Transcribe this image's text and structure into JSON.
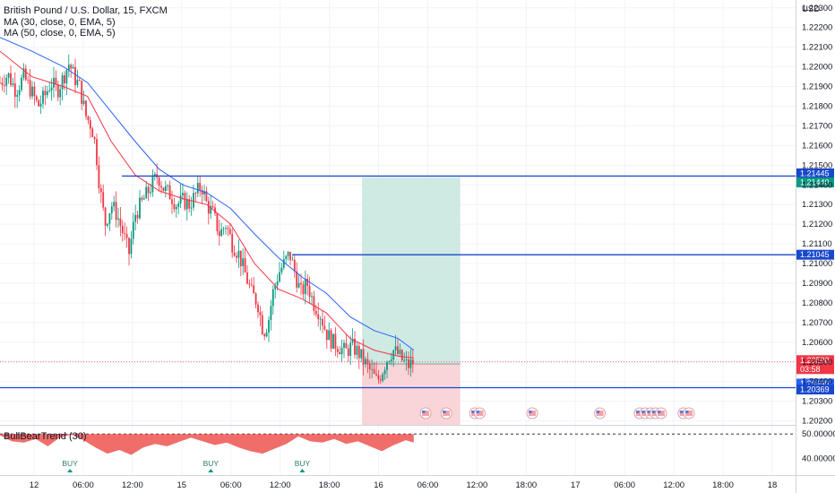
{
  "header": {
    "title": "British Pound / U.S. Dollar, 15, FXCM",
    "ma30": "MA (30, close, 0, EMA, 5)",
    "ma50": "MA (50, close, 0, EMA, 5)",
    "currency": "USD"
  },
  "chart_data": {
    "type": "candlestick",
    "title": "British Pound / U.S. Dollar, 15, FXCM",
    "ylim": [
      1.2018,
      1.2234
    ],
    "y_ticks": [
      "1.22300",
      "1.22200",
      "1.22100",
      "1.22000",
      "1.21900",
      "1.21800",
      "1.21700",
      "1.21600",
      "1.21500",
      "1.21400",
      "1.21300",
      "1.21200",
      "1.21100",
      "1.21000",
      "1.20900",
      "1.20800",
      "1.20700",
      "1.20600",
      "1.20500",
      "1.20400",
      "1.20300",
      "1.20200"
    ],
    "x_ticks": [
      "12",
      "06:00",
      "12:00",
      "15",
      "06:00",
      "12:00",
      "18:00",
      "16",
      "06:00",
      "12:00",
      "18:00",
      "17",
      "06:00",
      "12:00",
      "18:00",
      "18"
    ],
    "levels": [
      {
        "name": "upper-level",
        "value": 1.21445,
        "label": "1.21445"
      },
      {
        "name": "middle-level",
        "value": 1.21045,
        "label": "1.21045"
      },
      {
        "name": "lower-level",
        "value": 1.20369,
        "label": "1.20369"
      }
    ],
    "price_labels": [
      {
        "name": "take-profit-label",
        "value": 1.2144,
        "label": "1.21440",
        "color": "#089981"
      },
      {
        "name": "last-price-label",
        "value": 1.205,
        "label": "1.20500",
        "countdown": "03:58",
        "color": "#f23645"
      },
      {
        "name": "entry-price-label",
        "value": 1.2049,
        "label": "1.20490",
        "color": "#2962ff"
      }
    ],
    "position": {
      "entry": 1.2049,
      "take_profit": 1.2144,
      "stop_loss": 1.2018,
      "from": 0.455,
      "to": 0.5785
    },
    "price_path": [
      [
        0.0,
        1.2192
      ],
      [
        0.01,
        1.2196
      ],
      [
        0.02,
        1.2188
      ],
      [
        0.03,
        1.2195
      ],
      [
        0.04,
        1.2187
      ],
      [
        0.048,
        1.218
      ],
      [
        0.056,
        1.2185
      ],
      [
        0.064,
        1.2192
      ],
      [
        0.072,
        1.2188
      ],
      [
        0.08,
        1.2195
      ],
      [
        0.087,
        1.2202
      ],
      [
        0.093,
        1.2195
      ],
      [
        0.1,
        1.219
      ],
      [
        0.108,
        1.2175
      ],
      [
        0.115,
        1.217
      ],
      [
        0.12,
        1.216
      ],
      [
        0.125,
        1.214
      ],
      [
        0.132,
        1.212
      ],
      [
        0.14,
        1.213
      ],
      [
        0.147,
        1.2125
      ],
      [
        0.155,
        1.2115
      ],
      [
        0.162,
        1.2105
      ],
      [
        0.17,
        1.2125
      ],
      [
        0.177,
        1.213
      ],
      [
        0.184,
        1.2135
      ],
      [
        0.191,
        1.214
      ],
      [
        0.198,
        1.2145
      ],
      [
        0.206,
        1.2138
      ],
      [
        0.214,
        1.2135
      ],
      [
        0.222,
        1.213
      ],
      [
        0.23,
        1.2132
      ],
      [
        0.238,
        1.213
      ],
      [
        0.246,
        1.2135
      ],
      [
        0.253,
        1.214
      ],
      [
        0.26,
        1.213
      ],
      [
        0.268,
        1.2125
      ],
      [
        0.276,
        1.2115
      ],
      [
        0.284,
        1.212
      ],
      [
        0.292,
        1.211
      ],
      [
        0.3,
        1.2105
      ],
      [
        0.308,
        1.2095
      ],
      [
        0.316,
        1.2085
      ],
      [
        0.324,
        1.208
      ],
      [
        0.331,
        1.2065
      ],
      [
        0.337,
        1.207
      ],
      [
        0.343,
        1.2085
      ],
      [
        0.35,
        1.2095
      ],
      [
        0.357,
        1.21
      ],
      [
        0.364,
        1.2105
      ],
      [
        0.371,
        1.2095
      ],
      [
        0.378,
        1.2085
      ],
      [
        0.386,
        1.209
      ],
      [
        0.394,
        1.208
      ],
      [
        0.402,
        1.2075
      ],
      [
        0.41,
        1.2065
      ],
      [
        0.418,
        1.206
      ],
      [
        0.426,
        1.2058
      ],
      [
        0.434,
        1.2055
      ],
      [
        0.442,
        1.2058
      ],
      [
        0.45,
        1.2055
      ],
      [
        0.458,
        1.205
      ],
      [
        0.466,
        1.2045
      ],
      [
        0.474,
        1.204
      ],
      [
        0.48,
        1.2045
      ],
      [
        0.487,
        1.2052
      ],
      [
        0.494,
        1.2056
      ],
      [
        0.5,
        1.2054
      ],
      [
        0.507,
        1.205
      ],
      [
        0.513,
        1.2048
      ],
      [
        0.52,
        1.205
      ]
    ],
    "ma30_path": [
      [
        0.0,
        1.2208
      ],
      [
        0.04,
        1.2195
      ],
      [
        0.08,
        1.219
      ],
      [
        0.11,
        1.2185
      ],
      [
        0.14,
        1.2162
      ],
      [
        0.17,
        1.2145
      ],
      [
        0.2,
        1.2137
      ],
      [
        0.23,
        1.2133
      ],
      [
        0.26,
        1.213
      ],
      [
        0.29,
        1.212
      ],
      [
        0.32,
        1.21
      ],
      [
        0.35,
        1.2087
      ],
      [
        0.38,
        1.2082
      ],
      [
        0.41,
        1.2075
      ],
      [
        0.44,
        1.2062
      ],
      [
        0.47,
        1.2056
      ],
      [
        0.5,
        1.2053
      ],
      [
        0.52,
        1.2052
      ]
    ],
    "ma50_path": [
      [
        0.0,
        1.2215
      ],
      [
        0.04,
        1.2208
      ],
      [
        0.08,
        1.22
      ],
      [
        0.11,
        1.2192
      ],
      [
        0.14,
        1.2177
      ],
      [
        0.17,
        1.2162
      ],
      [
        0.2,
        1.2148
      ],
      [
        0.23,
        1.214
      ],
      [
        0.26,
        1.2136
      ],
      [
        0.29,
        1.2128
      ],
      [
        0.32,
        1.2115
      ],
      [
        0.35,
        1.2103
      ],
      [
        0.38,
        1.2093
      ],
      [
        0.41,
        1.2085
      ],
      [
        0.44,
        1.2073
      ],
      [
        0.47,
        1.2066
      ],
      [
        0.5,
        1.2062
      ],
      [
        0.52,
        1.2056
      ]
    ],
    "indicator": {
      "name": "BullBearTrend (30)",
      "ylim": [
        34.0,
        53.0
      ],
      "y_ticks": [
        "50.00000",
        "40.00000"
      ],
      "baseline": 50.0,
      "baseline_label": "50.00000",
      "values": [
        [
          0.0,
          49.5
        ],
        [
          0.015,
          47.0
        ],
        [
          0.03,
          46.5
        ],
        [
          0.045,
          48.0
        ],
        [
          0.06,
          45.0
        ],
        [
          0.075,
          48.5
        ],
        [
          0.09,
          49.8
        ],
        [
          0.105,
          47.5
        ],
        [
          0.12,
          44.5
        ],
        [
          0.135,
          42.0
        ],
        [
          0.15,
          43.5
        ],
        [
          0.165,
          41.5
        ],
        [
          0.18,
          44.5
        ],
        [
          0.195,
          46.0
        ],
        [
          0.21,
          45.0
        ],
        [
          0.225,
          46.8
        ],
        [
          0.24,
          48.5
        ],
        [
          0.255,
          47.0
        ],
        [
          0.27,
          45.5
        ],
        [
          0.285,
          46.5
        ],
        [
          0.3,
          44.5
        ],
        [
          0.315,
          43.0
        ],
        [
          0.33,
          42.0
        ],
        [
          0.345,
          44.0
        ],
        [
          0.36,
          46.0
        ],
        [
          0.375,
          49.0
        ],
        [
          0.39,
          47.0
        ],
        [
          0.405,
          46.5
        ],
        [
          0.42,
          48.0
        ],
        [
          0.435,
          46.0
        ],
        [
          0.45,
          47.0
        ],
        [
          0.465,
          45.0
        ],
        [
          0.48,
          43.0
        ],
        [
          0.495,
          45.5
        ],
        [
          0.51,
          47.5
        ],
        [
          0.52,
          46.5
        ]
      ],
      "signals": [
        {
          "label": "BUY",
          "x": 0.088
        },
        {
          "label": "BUY",
          "x": 0.265
        },
        {
          "label": "BUY",
          "x": 0.38
        }
      ]
    },
    "events": [
      0.535,
      0.561,
      0.597,
      0.603,
      0.669,
      0.754,
      0.804,
      0.811,
      0.818,
      0.824,
      0.831,
      0.859,
      0.866
    ]
  },
  "colors": {
    "bull": "#089981",
    "bear": "#f23645",
    "ma30": "#f23645",
    "ma50": "#2962ff",
    "level": "#1848cc",
    "profit_zone": "#cfe9e3",
    "loss_zone": "#f9d5d8"
  }
}
